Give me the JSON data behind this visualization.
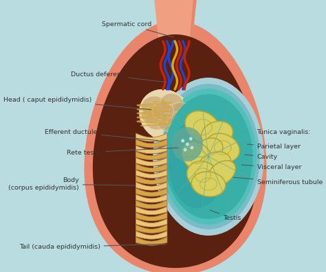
{
  "background_color": "#b8dce0",
  "fig_width": 4.74,
  "fig_height": 3.96,
  "dpi": 100,
  "labels": {
    "spermatic_cord": "Spermatic cord",
    "ductus_deferens": "Ductus deferens",
    "head": "Head ( caput epididymidis)",
    "efferent_ductule": "Efferent ductule",
    "rete_testis": "Rete testis",
    "body": "Body\n(corpus epididymidis)",
    "tail": "Tail (cauda epididymidis)",
    "tunica_vaginalis": "Tunica vaginalis:",
    "parietal_layer": "Parietal layer",
    "cavity": "Cavity",
    "visceral_layer": "Visceral layer",
    "seminiferous_tubule": "Seminiferous tubule",
    "testis": "Testis"
  },
  "colors": {
    "outer_skin": "#e8856a",
    "outer_skin_light": "#f0a080",
    "dark_brown": "#5a2010",
    "dark_brown2": "#7a3520",
    "epididymis_coil_gold": "#d4a840",
    "epididymis_coil_light": "#e8c870",
    "epididymis_bg": "#b87050",
    "head_cream": "#e8d8b0",
    "head_tan": "#c8a870",
    "tunica_outer_blue": "#a8d0d8",
    "tunica_mid_blue": "#78bcc8",
    "tunica_inner_teal": "#50c0b8",
    "testis_teal": "#38b0a8",
    "testis_dark_teal": "#2898a0",
    "seminiferous_yellow": "#d8d060",
    "seminiferous_outline": "#b8a830",
    "rete_teal": "#60a898",
    "vessel_red": "#cc2200",
    "vessel_blue": "#2244cc",
    "vessel_yellow": "#ddaa00",
    "vessel_red2": "#ee4422",
    "text_color": "#333333",
    "line_color": "#555555"
  }
}
